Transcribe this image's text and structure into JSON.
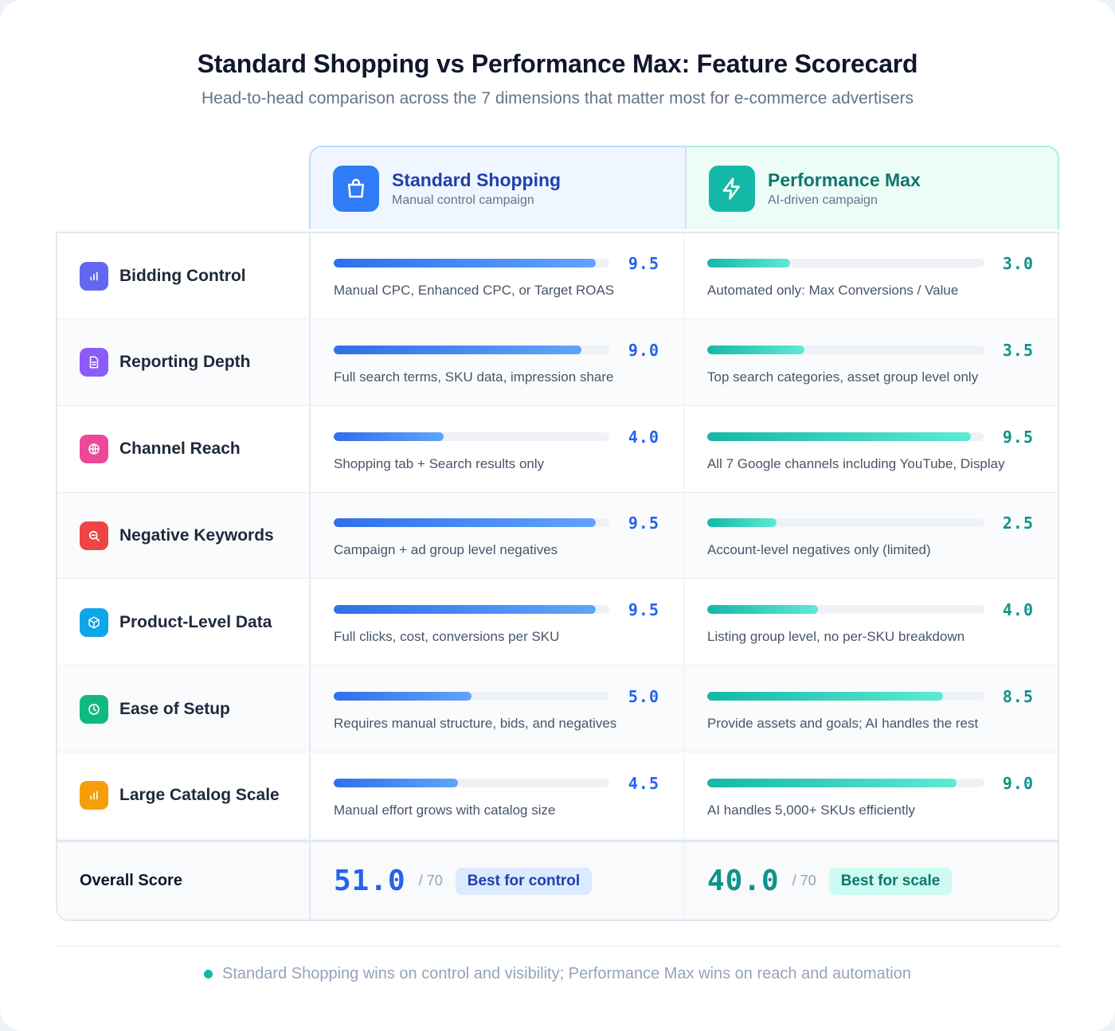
{
  "title": "Standard Shopping vs Performance Max: Feature Scorecard",
  "subtitle": "Head-to-head comparison across the 7 dimensions that matter most for e-commerce advertisers",
  "columns": {
    "standard": {
      "name": "Standard Shopping",
      "desc": "Manual control campaign",
      "icon": "shopping-bag-icon",
      "color": "#2f7cf6"
    },
    "pmax": {
      "name": "Performance Max",
      "desc": "AI-driven campaign",
      "icon": "lightning-icon",
      "color": "#14b8a6"
    }
  },
  "chart_data": {
    "type": "bar",
    "title": "Standard Shopping vs Performance Max: Feature Scorecard",
    "max_score": 10,
    "categories": [
      "Bidding Control",
      "Reporting Depth",
      "Channel Reach",
      "Negative Keywords",
      "Product-Level Data",
      "Ease of Setup",
      "Large Catalog Scale"
    ],
    "series": [
      {
        "name": "Standard Shopping",
        "values": [
          9.5,
          9.0,
          4.0,
          9.5,
          9.5,
          5.0,
          4.5
        ]
      },
      {
        "name": "Performance Max",
        "values": [
          3.0,
          3.5,
          9.5,
          2.5,
          4.0,
          8.5,
          9.0
        ]
      }
    ]
  },
  "rows": [
    {
      "label": "Bidding Control",
      "icon": "bar-chart-icon",
      "icon_color": "#6366f1",
      "std": {
        "score": "9.5",
        "value": 9.5,
        "note": "Manual CPC, Enhanced CPC, or Target ROAS"
      },
      "pmax": {
        "score": "3.0",
        "value": 3.0,
        "note": "Automated only: Max Conversions / Value"
      }
    },
    {
      "label": "Reporting Depth",
      "icon": "document-icon",
      "icon_color": "#8b5cf6",
      "std": {
        "score": "9.0",
        "value": 9.0,
        "note": "Full search terms, SKU data, impression share"
      },
      "pmax": {
        "score": "3.5",
        "value": 3.5,
        "note": "Top search categories, asset group level only"
      }
    },
    {
      "label": "Channel Reach",
      "icon": "globe-icon",
      "icon_color": "#ec4899",
      "std": {
        "score": "4.0",
        "value": 4.0,
        "note": "Shopping tab + Search results only"
      },
      "pmax": {
        "score": "9.5",
        "value": 9.5,
        "note": "All 7 Google channels including YouTube, Display"
      }
    },
    {
      "label": "Negative Keywords",
      "icon": "search-minus-icon",
      "icon_color": "#ef4444",
      "std": {
        "score": "9.5",
        "value": 9.5,
        "note": "Campaign + ad group level negatives"
      },
      "pmax": {
        "score": "2.5",
        "value": 2.5,
        "note": "Account-level negatives only (limited)"
      }
    },
    {
      "label": "Product-Level Data",
      "icon": "cube-icon",
      "icon_color": "#0ea5e9",
      "std": {
        "score": "9.5",
        "value": 9.5,
        "note": "Full clicks, cost, conversions per SKU"
      },
      "pmax": {
        "score": "4.0",
        "value": 4.0,
        "note": "Listing group level, no per-SKU breakdown"
      }
    },
    {
      "label": "Ease of Setup",
      "icon": "clock-icon",
      "icon_color": "#10b981",
      "std": {
        "score": "5.0",
        "value": 5.0,
        "note": "Requires manual structure, bids, and negatives"
      },
      "pmax": {
        "score": "8.5",
        "value": 8.5,
        "note": "Provide assets and goals; AI handles the rest"
      }
    },
    {
      "label": "Large Catalog Scale",
      "icon": "bar-chart-icon",
      "icon_color": "#f59e0b",
      "std": {
        "score": "4.5",
        "value": 4.5,
        "note": "Manual effort grows with catalog size"
      },
      "pmax": {
        "score": "9.0",
        "value": 9.0,
        "note": "AI handles 5,000+ SKUs efficiently"
      }
    }
  ],
  "overall": {
    "label": "Overall Score",
    "std": {
      "total": "51.0",
      "outof": "/ 70",
      "badge": "Best for control"
    },
    "pmax": {
      "total": "40.0",
      "outof": "/ 70",
      "badge": "Best for scale"
    }
  },
  "footer": "Standard Shopping wins on control and visibility; Performance Max wins on reach and automation"
}
